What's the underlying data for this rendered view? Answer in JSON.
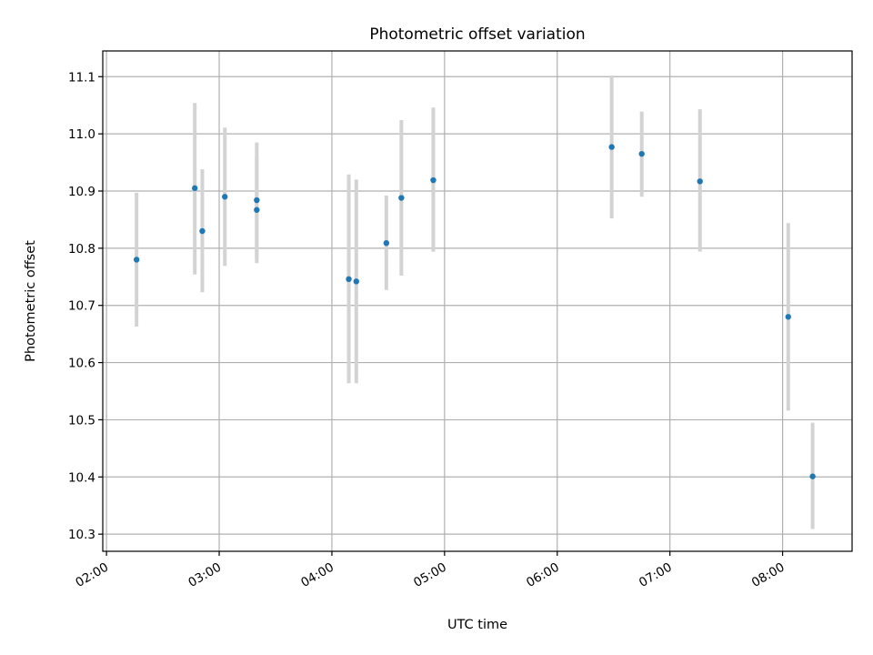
{
  "chart_data": {
    "type": "scatter",
    "title": "Photometric offset variation",
    "xlabel": "UTC time",
    "ylabel": "Photometric offset",
    "xlim": [
      "01:58",
      "08:37"
    ],
    "ylim": [
      10.27,
      11.145
    ],
    "xticks": [
      "02:00",
      "03:00",
      "04:00",
      "05:00",
      "06:00",
      "07:00",
      "08:00"
    ],
    "yticks": [
      "10.3",
      "10.4",
      "10.5",
      "10.6",
      "10.7",
      "10.8",
      "10.9",
      "11.0",
      "11.1"
    ],
    "grid": true,
    "colors": {
      "point": "#1f77b4",
      "errorbar": "#d3d3d3",
      "grid": "#b0b0b0"
    },
    "points": [
      {
        "x": "02:16",
        "y": 10.78,
        "lo": 10.663,
        "hi": 10.897
      },
      {
        "x": "02:47",
        "y": 10.905,
        "lo": 10.754,
        "hi": 11.054
      },
      {
        "x": "02:51",
        "y": 10.83,
        "lo": 10.723,
        "hi": 10.938
      },
      {
        "x": "03:03",
        "y": 10.89,
        "lo": 10.769,
        "hi": 11.011
      },
      {
        "x": "03:20",
        "y": 10.867,
        "lo": 10.774,
        "hi": 10.961
      },
      {
        "x": "03:20",
        "y": 10.884,
        "lo": 10.782,
        "hi": 10.985
      },
      {
        "x": "04:09",
        "y": 10.746,
        "lo": 10.564,
        "hi": 10.929
      },
      {
        "x": "04:13",
        "y": 10.742,
        "lo": 10.564,
        "hi": 10.92
      },
      {
        "x": "04:29",
        "y": 10.809,
        "lo": 10.727,
        "hi": 10.892
      },
      {
        "x": "04:37",
        "y": 10.888,
        "lo": 10.752,
        "hi": 11.024
      },
      {
        "x": "04:54",
        "y": 10.919,
        "lo": 10.794,
        "hi": 11.046
      },
      {
        "x": "06:29",
        "y": 10.977,
        "lo": 10.852,
        "hi": 11.102
      },
      {
        "x": "06:45",
        "y": 10.965,
        "lo": 10.89,
        "hi": 11.039
      },
      {
        "x": "07:16",
        "y": 10.917,
        "lo": 10.794,
        "hi": 11.043
      },
      {
        "x": "08:03",
        "y": 10.68,
        "lo": 10.516,
        "hi": 10.844
      },
      {
        "x": "08:16",
        "y": 10.401,
        "lo": 10.309,
        "hi": 10.495
      }
    ]
  }
}
